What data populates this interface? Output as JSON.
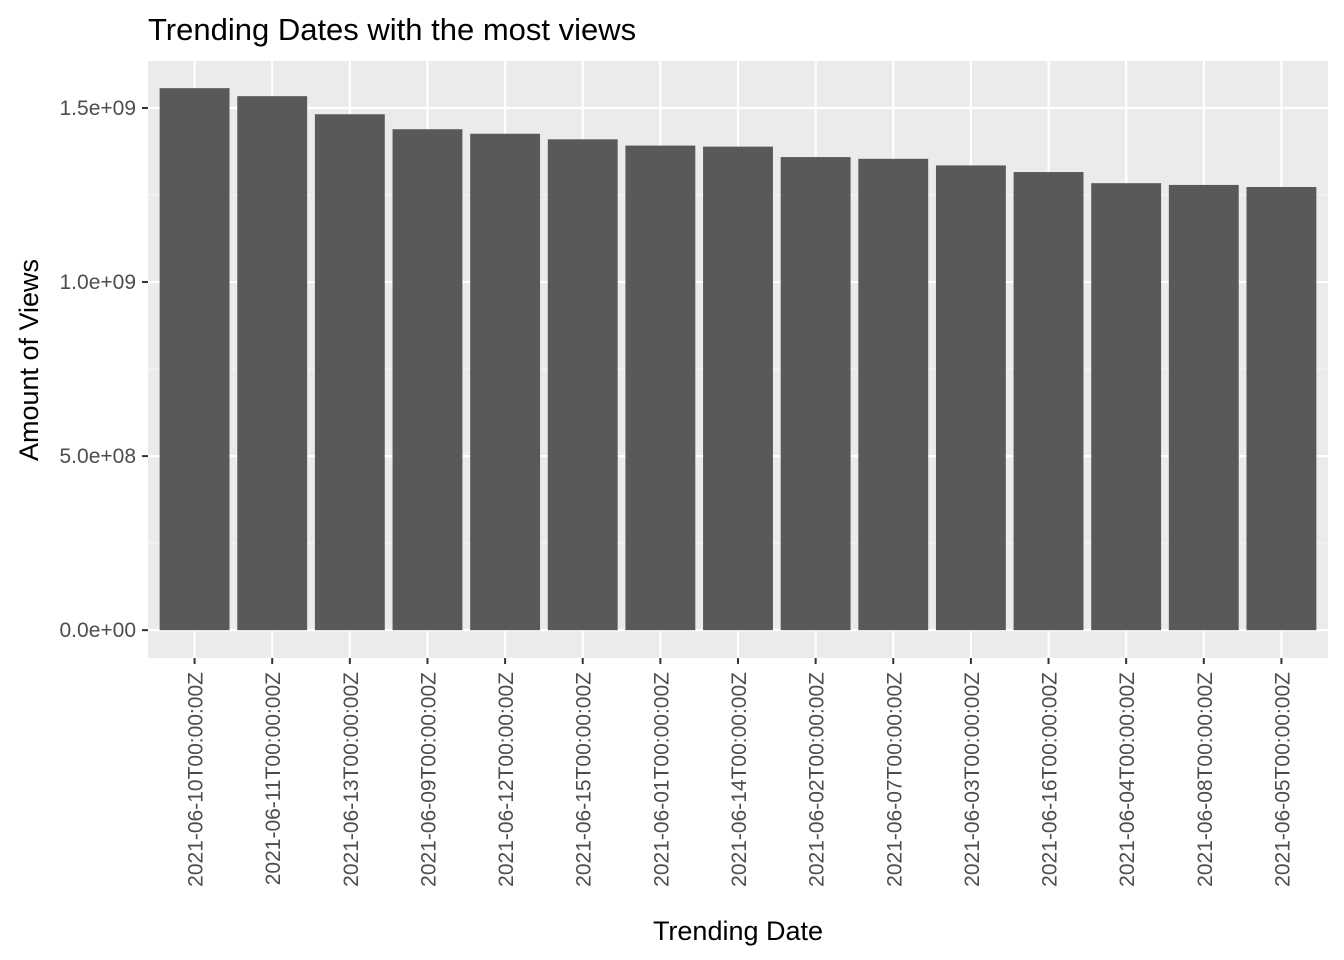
{
  "chart_data": {
    "type": "bar",
    "title": "Trending Dates with the most views",
    "xlabel": "Trending Date",
    "ylabel": "Amount of Views",
    "categories": [
      "2021-06-10T00:00:00Z",
      "2021-06-11T00:00:00Z",
      "2021-06-13T00:00:00Z",
      "2021-06-09T00:00:00Z",
      "2021-06-12T00:00:00Z",
      "2021-06-15T00:00:00Z",
      "2021-06-01T00:00:00Z",
      "2021-06-14T00:00:00Z",
      "2021-06-02T00:00:00Z",
      "2021-06-07T00:00:00Z",
      "2021-06-03T00:00:00Z",
      "2021-06-16T00:00:00Z",
      "2021-06-04T00:00:00Z",
      "2021-06-08T00:00:00Z",
      "2021-06-05T00:00:00Z"
    ],
    "values": [
      1557000000,
      1534000000,
      1482000000,
      1439000000,
      1426000000,
      1410000000,
      1392000000,
      1389000000,
      1359000000,
      1354000000,
      1335000000,
      1316000000,
      1284000000,
      1279000000,
      1273000000
    ],
    "ylim": [
      -80000000,
      1635000000
    ],
    "yticks": [
      0,
      500000000,
      1000000000,
      1500000000
    ],
    "yticklabels": [
      "0.0e+00",
      "5.0e+08",
      "1.0e+09",
      "1.5e+09"
    ],
    "grid": true,
    "colors": {
      "bar": "#595959",
      "panel_background": "#ebebeb",
      "major_grid": "#ffffff",
      "minor_grid": "#f5f5f5",
      "tick_label": "#4d4d4d",
      "tick_mark": "#333333"
    }
  }
}
